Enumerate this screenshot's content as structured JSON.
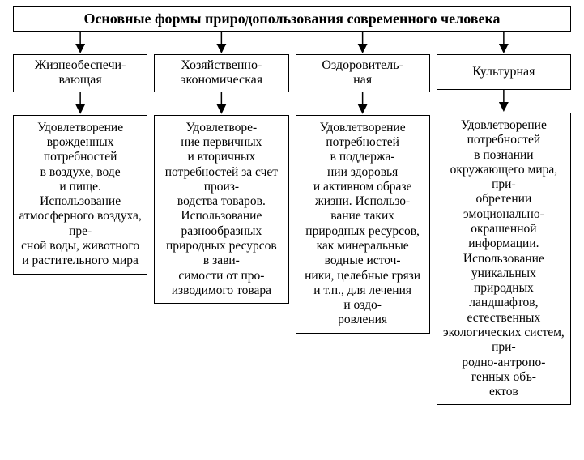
{
  "diagram": {
    "type": "tree",
    "title": "Основные формы природопользования современного человека",
    "title_fontsize": 18,
    "title_fontweight": "bold",
    "label_fontsize": 16,
    "desc_fontsize": 15.5,
    "background_color": "#ffffff",
    "border_color": "#000000",
    "text_color": "#000000",
    "arrow_color": "#000000",
    "columns": [
      {
        "label": "Жизнеобеспечи-\nвающая",
        "description": "Удовлетворение врожденных потребностей в воздухе, воде и пище. Использование атмосферного воздуха, пре-\nсной воды, животного и растительного мира"
      },
      {
        "label": "Хозяйственно-\nэкономическая",
        "description": "Удовлетворе-\nние первичных и вторичных потребностей за счет произ-\nводства товаров. Использование разнообразных природных ресурсов в зави-\nсимости от про-\nизводимого товара"
      },
      {
        "label": "Оздоровитель-\nная",
        "description": "Удовлетворение потребностей в поддержа-\nнии здоровья и активном образе жизни. Использо-\nвание таких природных ресурсов, как минеральные водные источ-\nники, целебные грязи и т.п., для лечения и оздо-\nровления"
      },
      {
        "label": "Культурная",
        "description": "Удовлетворение потребностей в познании окружающего мира, при-\nобретении эмоционально-\nокрашенной информации. Использование уникальных природных ландшафтов, естественных экологических систем, при-\nродно-антропо-\nгенных объ-\nектов"
      }
    ]
  }
}
